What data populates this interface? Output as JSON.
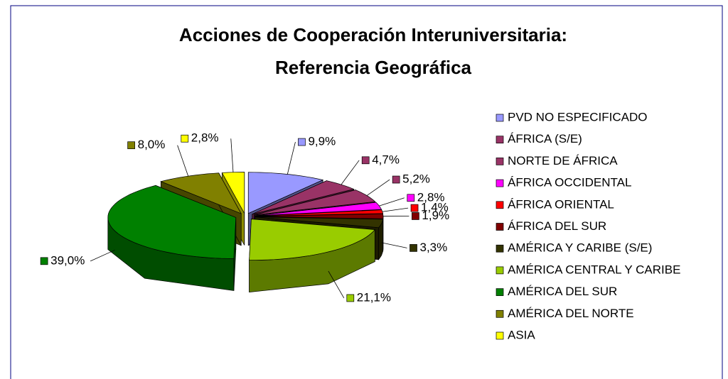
{
  "chart_data": {
    "type": "pie3d",
    "title": [
      "Acciones de Cooperación Interuniversitaria:",
      "Referencia Geográfica"
    ],
    "categories": [
      "PVD NO ESPECIFICADO",
      "ÁFRICA (S/E)",
      "NORTE DE ÁFRICA",
      "ÁFRICA OCCIDENTAL",
      "ÁFRICA ORIENTAL",
      "ÁFRICA DEL SUR",
      "AMÉRICA Y CARIBE (S/E)",
      "AMÉRICA CENTRAL Y CARIBE",
      "AMÉRICA DEL SUR",
      "AMÉRICA DEL NORTE",
      "ASIA"
    ],
    "values": [
      9.9,
      4.7,
      5.2,
      2.8,
      1.4,
      1.9,
      3.3,
      21.1,
      39.0,
      8.0,
      2.8
    ],
    "value_labels": [
      "9,9%",
      "4,7%",
      "5,2%",
      "2,8%",
      "1,4%",
      "1,9%",
      "3,3%",
      "21,1%",
      "39,0%",
      "8,0%",
      "2,8%"
    ],
    "colors": [
      "#9999ff",
      "#993366",
      "#993366",
      "#ff00ff",
      "#ff0000",
      "#800000",
      "#333300",
      "#99cc00",
      "#008000",
      "#808000",
      "#ffff00"
    ],
    "legend": "right"
  }
}
